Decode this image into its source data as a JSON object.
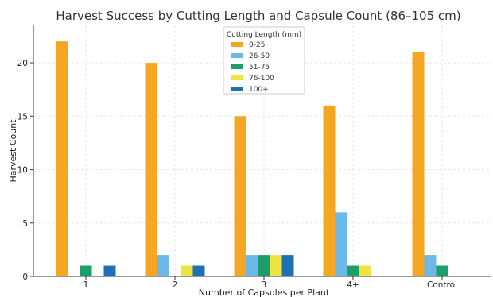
{
  "chart_data": {
    "type": "bar",
    "title": "Harvest Success by Cutting Length and Capsule Count (86–105 cm)",
    "xlabel": "Number of Capsules per Plant",
    "ylabel": "Harvest Count",
    "categories": [
      "1",
      "2",
      "3",
      "4+",
      "Control"
    ],
    "ylim": [
      0,
      23.5
    ],
    "yticks": [
      0,
      5,
      10,
      15,
      20
    ],
    "grid": true,
    "legend": {
      "title": "Cutting Length (mm)",
      "placement": "top-center"
    },
    "series": [
      {
        "name": "0-25",
        "color": "#f5a623",
        "values": [
          22,
          20,
          15,
          16,
          21
        ]
      },
      {
        "name": "26-50",
        "color": "#6cb8e6",
        "values": [
          0,
          2,
          2,
          6,
          2
        ]
      },
      {
        "name": "51-75",
        "color": "#1a9e6a",
        "values": [
          1,
          0,
          2,
          1,
          1
        ]
      },
      {
        "name": "76-100",
        "color": "#f0e442",
        "values": [
          0,
          1,
          2,
          1,
          0
        ]
      },
      {
        "name": "100+",
        "color": "#1f6fb4",
        "values": [
          1,
          1,
          2,
          0,
          0
        ]
      }
    ]
  }
}
